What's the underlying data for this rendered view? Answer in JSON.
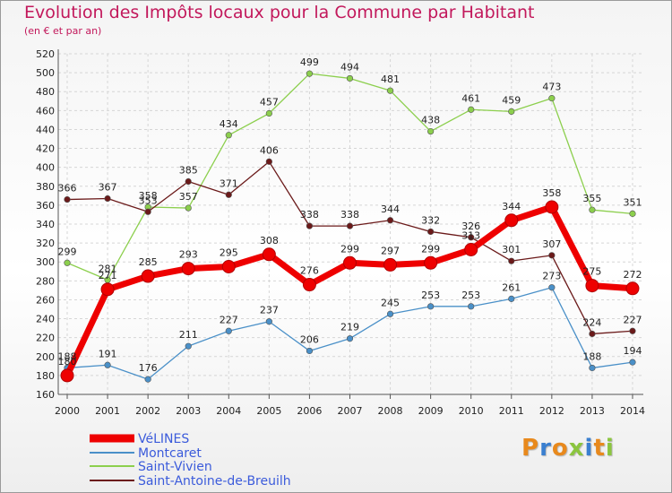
{
  "title": "Evolution des Impôts locaux pour la Commune par Habitant",
  "subtitle": "(en € et par an)",
  "logo": {
    "text": "Proxiti",
    "colors": [
      "#e8891c",
      "#3a7fd0",
      "#e8891c",
      "#8bc53f",
      "#3a7fd0",
      "#e8891c",
      "#8bc53f"
    ]
  },
  "chart_data": {
    "type": "line",
    "x": [
      "2000",
      "2001",
      "2002",
      "2003",
      "2004",
      "2005",
      "2006",
      "2007",
      "2008",
      "2009",
      "2010",
      "2011",
      "2012",
      "2013",
      "2014"
    ],
    "ylim": [
      160,
      520
    ],
    "yticks": [
      160,
      180,
      200,
      220,
      240,
      260,
      280,
      300,
      320,
      340,
      360,
      380,
      400,
      420,
      440,
      460,
      480,
      500,
      520
    ],
    "grid": true,
    "legend_position": "bottom-left",
    "series": [
      {
        "name": "VéLINES",
        "color": "#ee0000",
        "values": [
          180,
          271,
          285,
          293,
          295,
          308,
          276,
          299,
          297,
          299,
          313,
          344,
          358,
          275,
          272
        ]
      },
      {
        "name": "Montcaret",
        "color": "#4a90c8",
        "values": [
          188,
          191,
          176,
          211,
          227,
          237,
          206,
          219,
          245,
          253,
          253,
          261,
          273,
          188,
          194
        ]
      },
      {
        "name": "Saint-Vivien",
        "color": "#8ccf4d",
        "values": [
          299,
          281,
          358,
          357,
          434,
          457,
          499,
          494,
          481,
          438,
          461,
          459,
          473,
          355,
          351
        ]
      },
      {
        "name": "Saint-Antoine-de-Breuilh",
        "color": "#6b1a1a",
        "values": [
          366,
          367,
          353,
          385,
          371,
          406,
          338,
          338,
          344,
          332,
          326,
          301,
          307,
          224,
          227
        ]
      }
    ]
  }
}
